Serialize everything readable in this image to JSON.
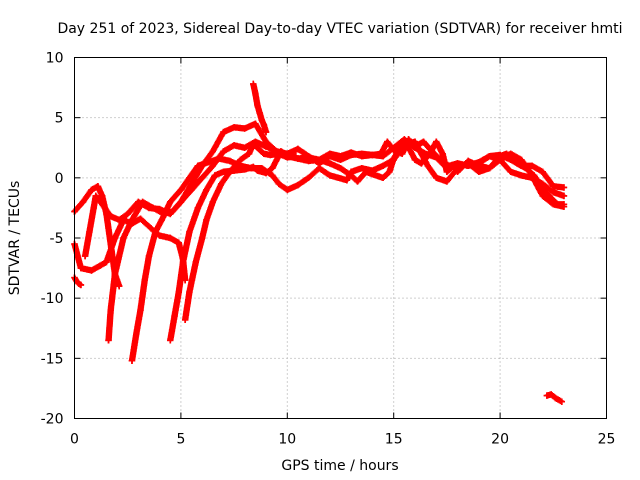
{
  "chart_data": {
    "type": "scatter",
    "title": "Day 251 of 2023, Sidereal Day-to-day VTEC variation (SDTVAR) for receiver hmti",
    "xlabel": "GPS time / hours",
    "ylabel": "SDTVAR / TECUs",
    "xlim": [
      0,
      25
    ],
    "ylim": [
      -20,
      10
    ],
    "xticks": [
      0,
      5,
      10,
      15,
      20,
      25
    ],
    "yticks": [
      10,
      5,
      0,
      -5,
      -10,
      -15,
      -20
    ],
    "grid": true,
    "marker": "+",
    "color": "#ff0000",
    "series": [
      {
        "name": "arc-1",
        "points": [
          [
            0.0,
            -2.8
          ],
          [
            0.4,
            -2.0
          ],
          [
            0.8,
            -1.0
          ],
          [
            1.1,
            -0.7
          ],
          [
            1.3,
            -1.5
          ],
          [
            1.5,
            -3.0
          ],
          [
            1.7,
            -5.5
          ],
          [
            1.9,
            -8.0
          ],
          [
            2.1,
            -9.0
          ]
        ]
      },
      {
        "name": "arc-2",
        "points": [
          [
            0.0,
            -5.5
          ],
          [
            0.3,
            -7.5
          ],
          [
            0.8,
            -7.7
          ],
          [
            1.2,
            -7.3
          ],
          [
            1.5,
            -7.0
          ],
          [
            1.9,
            -5.0
          ],
          [
            2.3,
            -3.5
          ],
          [
            2.7,
            -3.8
          ],
          [
            3.1,
            -3.4
          ],
          [
            3.6,
            -4.2
          ],
          [
            4.0,
            -4.8
          ],
          [
            4.5,
            -5.0
          ],
          [
            4.9,
            -5.4
          ],
          [
            5.1,
            -6.8
          ],
          [
            5.2,
            -8.5
          ]
        ]
      },
      {
        "name": "arc-3",
        "points": [
          [
            0.0,
            -8.3
          ],
          [
            0.1,
            -8.6
          ],
          [
            0.2,
            -8.8
          ],
          [
            0.3,
            -8.9
          ]
        ]
      },
      {
        "name": "arc-4",
        "points": [
          [
            0.5,
            -6.5
          ],
          [
            0.7,
            -4.5
          ],
          [
            0.9,
            -2.5
          ],
          [
            1.0,
            -1.5
          ],
          [
            1.3,
            -2.2
          ],
          [
            1.7,
            -3.2
          ],
          [
            2.1,
            -3.5
          ],
          [
            2.5,
            -3.0
          ],
          [
            3.0,
            -2.0
          ],
          [
            3.5,
            -2.5
          ],
          [
            4.0,
            -2.6
          ],
          [
            4.5,
            -3.0
          ],
          [
            5.0,
            -2.0
          ],
          [
            5.5,
            -1.0
          ],
          [
            6.0,
            0.0
          ],
          [
            6.5,
            1.0
          ],
          [
            7.0,
            2.2
          ],
          [
            7.5,
            2.7
          ],
          [
            8.0,
            2.5
          ],
          [
            8.5,
            3.0
          ],
          [
            9.0,
            2.6
          ],
          [
            9.5,
            2.2
          ],
          [
            10.0,
            2.0
          ],
          [
            10.5,
            2.4
          ],
          [
            11.0,
            1.8
          ],
          [
            11.5,
            1.2
          ],
          [
            12.0,
            1.8
          ],
          [
            12.5,
            1.5
          ],
          [
            13.0,
            1.9
          ],
          [
            13.5,
            2.0
          ],
          [
            14.0,
            1.9
          ],
          [
            14.5,
            1.8
          ],
          [
            15.0,
            2.5
          ],
          [
            15.5,
            3.2
          ],
          [
            16.0,
            2.5
          ],
          [
            16.5,
            2.0
          ],
          [
            17.0,
            1.7
          ],
          [
            17.5,
            0.8
          ],
          [
            18.0,
            1.2
          ],
          [
            18.5,
            1.0
          ],
          [
            19.0,
            1.3
          ],
          [
            19.5,
            1.8
          ],
          [
            20.0,
            1.5
          ],
          [
            20.5,
            0.5
          ],
          [
            21.0,
            0.2
          ],
          [
            21.5,
            0.0
          ],
          [
            22.0,
            -0.5
          ],
          [
            22.5,
            -1.2
          ],
          [
            23.0,
            -1.5
          ]
        ]
      },
      {
        "name": "arc-5",
        "points": [
          [
            1.6,
            -13.5
          ],
          [
            1.7,
            -11.0
          ],
          [
            1.9,
            -8.0
          ],
          [
            2.3,
            -5.0
          ],
          [
            2.7,
            -3.5
          ],
          [
            3.2,
            -2.0
          ],
          [
            3.7,
            -2.5
          ],
          [
            4.2,
            -3.0
          ],
          [
            4.6,
            -2.8
          ],
          [
            5.0,
            -2.0
          ],
          [
            5.5,
            -0.5
          ],
          [
            6.0,
            1.0
          ],
          [
            6.5,
            2.2
          ],
          [
            7.0,
            3.8
          ],
          [
            7.5,
            4.2
          ],
          [
            8.0,
            4.1
          ],
          [
            8.5,
            4.5
          ],
          [
            9.0,
            3.0
          ],
          [
            9.5,
            2.2
          ],
          [
            10.0,
            1.8
          ],
          [
            10.5,
            1.6
          ],
          [
            11.0,
            1.4
          ],
          [
            11.5,
            1.5
          ],
          [
            12.0,
            1.2
          ],
          [
            12.5,
            0.8
          ],
          [
            13.0,
            0.2
          ],
          [
            13.3,
            -0.3
          ],
          [
            13.7,
            0.5
          ],
          [
            14.0,
            0.3
          ],
          [
            14.5,
            0.0
          ],
          [
            14.8,
            0.5
          ],
          [
            15.0,
            1.6
          ],
          [
            15.3,
            2.5
          ],
          [
            15.5,
            3.0
          ],
          [
            15.8,
            2.2
          ],
          [
            16.0,
            1.5
          ],
          [
            16.3,
            1.2
          ],
          [
            16.7,
            2.0
          ],
          [
            17.0,
            3.0
          ],
          [
            17.3,
            2.0
          ],
          [
            17.5,
            0.5
          ],
          [
            17.8,
            1.0
          ],
          [
            18.0,
            0.5
          ],
          [
            18.5,
            1.4
          ],
          [
            19.0,
            1.0
          ],
          [
            19.5,
            0.8
          ],
          [
            20.0,
            1.5
          ],
          [
            20.5,
            2.0
          ],
          [
            21.0,
            1.5
          ],
          [
            21.4,
            0.5
          ],
          [
            21.7,
            -0.5
          ],
          [
            22.0,
            -1.5
          ],
          [
            22.5,
            -2.2
          ],
          [
            23.0,
            -2.4
          ]
        ]
      },
      {
        "name": "arc-6",
        "points": [
          [
            2.7,
            -15.2
          ],
          [
            2.9,
            -13.0
          ],
          [
            3.1,
            -11.0
          ],
          [
            3.3,
            -8.5
          ],
          [
            3.5,
            -6.5
          ],
          [
            3.8,
            -4.5
          ],
          [
            4.1,
            -3.5
          ],
          [
            4.5,
            -2.0
          ],
          [
            5.0,
            -1.0
          ],
          [
            5.4,
            0.0
          ],
          [
            5.8,
            1.0
          ],
          [
            6.3,
            1.3
          ],
          [
            6.8,
            1.6
          ],
          [
            7.3,
            1.4
          ],
          [
            7.8,
            1.0
          ],
          [
            8.3,
            0.8
          ],
          [
            8.8,
            0.8
          ],
          [
            9.3,
            0.2
          ],
          [
            9.6,
            -0.5
          ],
          [
            10.0,
            -1.0
          ],
          [
            10.5,
            -0.6
          ],
          [
            11.0,
            0.0
          ],
          [
            11.5,
            0.8
          ],
          [
            12.0,
            0.2
          ],
          [
            12.4,
            0.0
          ],
          [
            12.8,
            -0.2
          ],
          [
            13.0,
            0.5
          ],
          [
            13.5,
            0.8
          ],
          [
            14.0,
            0.6
          ],
          [
            14.5,
            1.0
          ],
          [
            15.0,
            1.5
          ],
          [
            15.5,
            2.8
          ],
          [
            16.0,
            3.0
          ],
          [
            16.3,
            2.0
          ],
          [
            16.6,
            1.0
          ],
          [
            17.0,
            0.0
          ],
          [
            17.5,
            -0.3
          ],
          [
            18.0,
            0.8
          ],
          [
            18.5,
            1.2
          ],
          [
            19.0,
            0.5
          ],
          [
            19.5,
            0.8
          ],
          [
            20.0,
            1.8
          ],
          [
            20.3,
            2.0
          ],
          [
            20.8,
            1.2
          ],
          [
            21.2,
            0.8
          ],
          [
            21.6,
            0.2
          ],
          [
            21.9,
            -0.7
          ],
          [
            22.3,
            -1.5
          ],
          [
            22.7,
            -2.2
          ],
          [
            23.0,
            -2.2
          ]
        ]
      },
      {
        "name": "arc-7",
        "points": [
          [
            4.5,
            -13.5
          ],
          [
            4.7,
            -11.5
          ],
          [
            4.9,
            -9.5
          ],
          [
            5.1,
            -7.0
          ],
          [
            5.4,
            -4.5
          ],
          [
            5.8,
            -2.5
          ],
          [
            6.2,
            -1.0
          ],
          [
            6.6,
            0.2
          ],
          [
            7.0,
            0.5
          ],
          [
            7.5,
            0.6
          ],
          [
            8.0,
            0.7
          ],
          [
            8.4,
            0.9
          ],
          [
            8.6,
            0.6
          ],
          [
            9.0,
            0.4
          ],
          [
            9.3,
            0.8
          ],
          [
            9.7,
            2.2
          ],
          [
            10.1,
            1.8
          ],
          [
            10.5,
            1.6
          ],
          [
            11.0,
            1.7
          ],
          [
            11.5,
            1.5
          ],
          [
            12.0,
            2.0
          ],
          [
            12.5,
            1.8
          ],
          [
            13.0,
            2.1
          ],
          [
            13.5,
            1.8
          ],
          [
            14.0,
            1.9
          ],
          [
            14.4,
            2.0
          ],
          [
            14.7,
            3.0
          ],
          [
            15.0,
            2.3
          ],
          [
            15.4,
            2.0
          ],
          [
            15.7,
            3.2
          ],
          [
            16.0,
            2.6
          ],
          [
            16.4,
            3.0
          ],
          [
            16.8,
            2.2
          ],
          [
            17.2,
            1.5
          ],
          [
            17.6,
            1.0
          ],
          [
            18.0,
            1.2
          ],
          [
            18.5,
            1.0
          ],
          [
            19.0,
            1.2
          ],
          [
            19.5,
            1.8
          ],
          [
            20.0,
            1.9
          ],
          [
            20.5,
            1.5
          ],
          [
            21.0,
            1.0
          ],
          [
            21.5,
            1.0
          ],
          [
            22.0,
            0.5
          ],
          [
            22.5,
            -0.7
          ],
          [
            23.0,
            -0.8
          ]
        ]
      },
      {
        "name": "arc-8",
        "points": [
          [
            5.2,
            -11.8
          ],
          [
            5.4,
            -9.5
          ],
          [
            5.7,
            -7.0
          ],
          [
            6.0,
            -5.0
          ],
          [
            6.2,
            -3.5
          ],
          [
            6.5,
            -2.0
          ],
          [
            6.9,
            -0.5
          ],
          [
            7.3,
            0.5
          ],
          [
            7.8,
            1.5
          ],
          [
            8.2,
            2.0
          ],
          [
            8.4,
            2.8
          ],
          [
            8.6,
            2.5
          ],
          [
            8.9,
            2.0
          ],
          [
            9.2,
            1.9
          ],
          [
            9.6,
            2.0
          ],
          [
            10.0,
            1.7
          ],
          [
            10.4,
            1.8
          ]
        ]
      },
      {
        "name": "arc-9",
        "points": [
          [
            8.4,
            7.8
          ],
          [
            8.5,
            7.0
          ],
          [
            8.6,
            6.0
          ],
          [
            8.7,
            5.4
          ],
          [
            8.8,
            4.8
          ],
          [
            8.9,
            4.4
          ],
          [
            9.0,
            3.8
          ]
        ]
      },
      {
        "name": "arc-10",
        "points": [
          [
            22.2,
            -18.1
          ],
          [
            22.4,
            -18.0
          ],
          [
            22.6,
            -18.3
          ],
          [
            22.9,
            -18.6
          ]
        ]
      }
    ]
  }
}
